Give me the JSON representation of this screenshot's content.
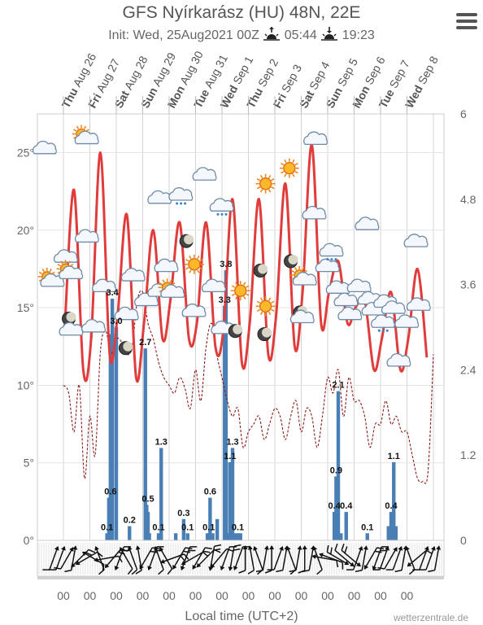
{
  "header": {
    "title": "GFS Nyírkarász (HU) 48N, 22E",
    "init_text": "Init: Wed, 25Aug2021 00Z",
    "sunrise": "05:44",
    "sunset": "19:23"
  },
  "footer": {
    "local_time_label": "Local time (UTC+2)",
    "brand": "wetterzentrale.de"
  },
  "chart_data": {
    "type": "line",
    "days": [
      {
        "dow": "Thu",
        "date": "Aug 26"
      },
      {
        "dow": "Fri",
        "date": "Aug 27"
      },
      {
        "dow": "Sat",
        "date": "Aug 28"
      },
      {
        "dow": "Sun",
        "date": "Aug 29"
      },
      {
        "dow": "Mon",
        "date": "Aug 30"
      },
      {
        "dow": "Tue",
        "date": "Aug 31"
      },
      {
        "dow": "Wed",
        "date": "Sep 1"
      },
      {
        "dow": "Thu",
        "date": "Sep 2"
      },
      {
        "dow": "Fri",
        "date": "Sep 3"
      },
      {
        "dow": "Sat",
        "date": "Sep 4"
      },
      {
        "dow": "Sun",
        "date": "Sep 5"
      },
      {
        "dow": "Mon",
        "date": "Sep 6"
      },
      {
        "dow": "Tue",
        "date": "Sep 7"
      },
      {
        "dow": "Wed",
        "date": "Sep 8"
      }
    ],
    "bottom_tick_label": "00",
    "y_left_ticks": [
      "0°",
      "5°",
      "10°",
      "15°",
      "20°",
      "25°"
    ],
    "y_left_range": [
      0,
      27.5
    ],
    "y_right_ticks": [
      "0",
      "1.2",
      "2.4",
      "3.6",
      "4.8",
      "6"
    ],
    "y_right_range": [
      0,
      6
    ],
    "series": [
      {
        "type": "line",
        "color": "#e03c3c",
        "x_days": [
          0.05,
          0.4,
          0.75,
          1.05,
          1.4,
          1.75,
          2.05,
          2.4,
          2.75,
          3.05,
          3.4,
          3.75,
          4.05,
          4.4,
          4.75,
          5.05,
          5.4,
          5.75,
          6.05,
          6.4,
          6.75,
          7.05,
          7.4,
          7.75,
          8.05,
          8.4,
          8.75,
          9.05,
          9.4,
          9.75,
          10.05,
          10.4,
          10.75,
          11.05,
          11.4,
          11.75,
          12.05,
          12.4,
          12.75,
          13.05,
          13.4,
          13.75
        ],
        "values": [
          13.7,
          22.6,
          11,
          13,
          25,
          12,
          14.5,
          21,
          10.5,
          14,
          20,
          13,
          15.5,
          20.5,
          13,
          14,
          20.5,
          12.5,
          13.5,
          22,
          11.5,
          14,
          22,
          12,
          14.5,
          23,
          12.5,
          16,
          25.5,
          14,
          16,
          18,
          14,
          15,
          15.5,
          11,
          13,
          16,
          11,
          13,
          17.5,
          11.8
        ]
      },
      {
        "type": "line",
        "style": "dashed",
        "color": "#8b1a1a",
        "x_days": [
          0,
          0.2,
          0.4,
          0.6,
          0.8,
          1.0,
          1.2,
          1.4,
          1.6,
          1.8,
          2.0,
          2.2,
          2.4,
          2.6,
          2.8,
          3.0,
          3.2,
          3.4,
          3.6,
          3.8,
          4.0,
          4.2,
          4.4,
          4.6,
          4.8,
          5.0,
          5.2,
          5.4,
          5.6,
          5.8,
          6.0,
          6.2,
          6.4,
          6.6,
          6.8,
          7.0,
          7.2,
          7.4,
          7.6,
          7.8,
          8.0,
          8.2,
          8.4,
          8.6,
          8.8,
          9.0,
          9.2,
          9.4,
          9.6,
          9.8,
          10.0,
          10.2,
          10.4,
          10.6,
          10.8,
          11.0,
          11.2,
          11.4,
          11.6,
          11.8,
          12.0,
          12.2,
          12.4,
          12.6,
          12.8,
          13.0,
          13.2,
          13.4,
          13.6,
          13.8,
          14.0
        ],
        "values": [
          10,
          9.5,
          7,
          10,
          4,
          8,
          5.5,
          12.2,
          13.5,
          12,
          13,
          12.8,
          12,
          12.5,
          15.5,
          16,
          14,
          13,
          11.5,
          10.5,
          10,
          9.5,
          10.5,
          9.8,
          8.5,
          11,
          9,
          12.5,
          14,
          12,
          10.5,
          9,
          8,
          8.5,
          6,
          7,
          7.5,
          8,
          6.5,
          7.5,
          8.5,
          8,
          6.5,
          8,
          9,
          7,
          8.5,
          8,
          6,
          8,
          10.5,
          9.5,
          11,
          8,
          10.5,
          9,
          9,
          8,
          6,
          7.5,
          7.5,
          9,
          7.5,
          8,
          7,
          7,
          5.5,
          4,
          3.8,
          4.5,
          12
        ]
      },
      {
        "type": "bar",
        "color": "#4a7fb5",
        "x_days": [
          1.65,
          1.72,
          1.78,
          1.85,
          2.0,
          2.5,
          3.1,
          3.15,
          3.2,
          3.25,
          3.6,
          3.7,
          4.25,
          4.55,
          4.7,
          5.45,
          5.55,
          5.65,
          5.82,
          6.1,
          6.15,
          6.2,
          6.3,
          6.4,
          6.5,
          6.6,
          6.7,
          10.25,
          10.32,
          10.4,
          10.5,
          10.7,
          11.5,
          12.3,
          12.4,
          12.5,
          12.58
        ],
        "values": [
          0.1,
          0.6,
          2.9,
          3.4,
          3.0,
          0.2,
          2.7,
          0.5,
          0.4,
          0.1,
          0.1,
          1.3,
          0.1,
          0.3,
          0.1,
          0.1,
          0.6,
          0.1,
          0.3,
          3.3,
          3.8,
          0.1,
          1.1,
          1.3,
          0.1,
          0.1,
          0.1,
          0.4,
          0.9,
          2.1,
          0.1,
          0.4,
          0.1,
          0.2,
          0.4,
          1.1,
          0.2
        ]
      }
    ],
    "bar_labels": [
      {
        "x_day": 1.65,
        "value": 0.1,
        "text": "0.1"
      },
      {
        "x_day": 1.78,
        "value": 0.6,
        "text": "0.6"
      },
      {
        "x_day": 1.85,
        "value": 3.4,
        "text": "3.4"
      },
      {
        "x_day": 2.0,
        "value": 3.0,
        "text": "3.0"
      },
      {
        "x_day": 2.5,
        "value": 0.2,
        "text": "0.2"
      },
      {
        "x_day": 3.1,
        "value": 2.7,
        "text": "2.7"
      },
      {
        "x_day": 3.2,
        "value": 0.5,
        "text": "0.5"
      },
      {
        "x_day": 3.6,
        "value": 0.1,
        "text": "0.1"
      },
      {
        "x_day": 3.7,
        "value": 1.3,
        "text": "1.3"
      },
      {
        "x_day": 4.55,
        "value": 0.3,
        "text": "0.3"
      },
      {
        "x_day": 4.7,
        "value": 0.1,
        "text": "0.1"
      },
      {
        "x_day": 5.5,
        "value": 0.1,
        "text": "0.1"
      },
      {
        "x_day": 5.55,
        "value": 0.6,
        "text": "0.6"
      },
      {
        "x_day": 6.1,
        "value": 3.3,
        "text": "3.3"
      },
      {
        "x_day": 6.15,
        "value": 3.8,
        "text": "3.8"
      },
      {
        "x_day": 6.3,
        "value": 1.1,
        "text": "1.1"
      },
      {
        "x_day": 6.4,
        "value": 1.3,
        "text": "1.3"
      },
      {
        "x_day": 6.6,
        "value": 0.1,
        "text": "0.1"
      },
      {
        "x_day": 10.25,
        "value": 0.4,
        "text": "0.4"
      },
      {
        "x_day": 10.32,
        "value": 0.9,
        "text": "0.9"
      },
      {
        "x_day": 10.4,
        "value": 2.1,
        "text": "2.1"
      },
      {
        "x_day": 10.7,
        "value": 0.4,
        "text": "0.4"
      },
      {
        "x_day": 11.5,
        "value": 0.1,
        "text": "0.1"
      },
      {
        "x_day": 12.4,
        "value": 0.4,
        "text": "0.4"
      },
      {
        "x_day": 12.5,
        "value": 1.1,
        "text": "1.1"
      }
    ],
    "weather_icons": [
      {
        "x_day": -0.7,
        "temp": 25.2,
        "icon": "cloud"
      },
      {
        "x_day": 0.8,
        "temp": 26.0,
        "icon": "sun-cloud"
      },
      {
        "x_day": -0.5,
        "temp": 16.8,
        "icon": "sun-cloud"
      },
      {
        "x_day": 0.1,
        "temp": 18.2,
        "icon": "cloud"
      },
      {
        "x_day": 0.9,
        "temp": 19.5,
        "icon": "cloud"
      },
      {
        "x_day": 0.2,
        "temp": 17.3,
        "icon": "sun-cloud"
      },
      {
        "x_day": 0.2,
        "temp": 14.3,
        "icon": "moon"
      },
      {
        "x_day": 0.3,
        "temp": 13.5,
        "icon": "cloud"
      },
      {
        "x_day": 1.15,
        "temp": 13.7,
        "icon": "cloud"
      },
      {
        "x_day": 1.55,
        "temp": 16.3,
        "icon": "cloud"
      },
      {
        "x_day": 2.35,
        "temp": 12.4,
        "icon": "moon"
      },
      {
        "x_day": 2.4,
        "temp": 14.5,
        "icon": "cloud"
      },
      {
        "x_day": 2.65,
        "temp": 17.0,
        "icon": "cloud"
      },
      {
        "x_day": 3.15,
        "temp": 15.4,
        "icon": "cloud"
      },
      {
        "x_day": 3.65,
        "temp": 16.0,
        "icon": "cloud"
      },
      {
        "x_day": 3.65,
        "temp": 22.0,
        "icon": "cloud"
      },
      {
        "x_day": 3.9,
        "temp": 17.6,
        "icon": "cloud"
      },
      {
        "x_day": 4.05,
        "temp": 16.1,
        "icon": "sun-cloud"
      },
      {
        "x_day": 4.45,
        "temp": 22.2,
        "icon": "cloud-rain"
      },
      {
        "x_day": 4.65,
        "temp": 19.3,
        "icon": "moon"
      },
      {
        "x_day": 4.95,
        "temp": 17.8,
        "icon": "sun"
      },
      {
        "x_day": 4.95,
        "temp": 14.7,
        "icon": "cloud"
      },
      {
        "x_day": 5.35,
        "temp": 23.5,
        "icon": "cloud"
      },
      {
        "x_day": 5.7,
        "temp": 16.3,
        "icon": "cloud"
      },
      {
        "x_day": 6.0,
        "temp": 21.5,
        "icon": "cloud-rain"
      },
      {
        "x_day": 6.05,
        "temp": 13.6,
        "icon": "cloud"
      },
      {
        "x_day": 6.5,
        "temp": 13.5,
        "icon": "moon"
      },
      {
        "x_day": 6.7,
        "temp": 16.1,
        "icon": "sun"
      },
      {
        "x_day": 7.45,
        "temp": 17.4,
        "icon": "moon"
      },
      {
        "x_day": 7.65,
        "temp": 23.0,
        "icon": "sun"
      },
      {
        "x_day": 7.65,
        "temp": 15.1,
        "icon": "sun"
      },
      {
        "x_day": 7.6,
        "temp": 13.3,
        "icon": "moon"
      },
      {
        "x_day": 8.55,
        "temp": 24.0,
        "icon": "sun"
      },
      {
        "x_day": 8.6,
        "temp": 18.0,
        "icon": "moon"
      },
      {
        "x_day": 9.05,
        "temp": 16.9,
        "icon": "sun-cloud"
      },
      {
        "x_day": 8.95,
        "temp": 14.7,
        "icon": "moon"
      },
      {
        "x_day": 9.05,
        "temp": 14.3,
        "icon": "cloud"
      },
      {
        "x_day": 9.55,
        "temp": 25.8,
        "icon": "cloud"
      },
      {
        "x_day": 9.5,
        "temp": 21.0,
        "icon": "cloud"
      },
      {
        "x_day": 10.0,
        "temp": 17.6,
        "icon": "cloud"
      },
      {
        "x_day": 10.15,
        "temp": 18.6,
        "icon": "cloud-rain"
      },
      {
        "x_day": 10.4,
        "temp": 16.2,
        "icon": "cloud"
      },
      {
        "x_day": 10.7,
        "temp": 15.4,
        "icon": "cloud"
      },
      {
        "x_day": 10.85,
        "temp": 14.5,
        "icon": "cloud"
      },
      {
        "x_day": 11.2,
        "temp": 16.3,
        "icon": "cloud"
      },
      {
        "x_day": 11.5,
        "temp": 20.3,
        "icon": "cloud"
      },
      {
        "x_day": 11.6,
        "temp": 15.5,
        "icon": "cloud"
      },
      {
        "x_day": 11.75,
        "temp": 14.8,
        "icon": "cloud"
      },
      {
        "x_day": 12.1,
        "temp": 14.0,
        "icon": "cloud-rain"
      },
      {
        "x_day": 12.2,
        "temp": 15.3,
        "icon": "cloud"
      },
      {
        "x_day": 12.5,
        "temp": 14.9,
        "icon": "cloud"
      },
      {
        "x_day": 12.7,
        "temp": 11.5,
        "icon": "cloud"
      },
      {
        "x_day": 13.0,
        "temp": 14.0,
        "icon": "cloud"
      },
      {
        "x_day": 13.35,
        "temp": 19.2,
        "icon": "cloud"
      },
      {
        "x_day": 13.45,
        "temp": 15.1,
        "icon": "cloud"
      }
    ],
    "wind_barbs": {
      "start_day": 0,
      "step_days": 0.25,
      "directions_deg": [
        200,
        200,
        210,
        190,
        45,
        60,
        120,
        160,
        80,
        40,
        20,
        150,
        160,
        170,
        30,
        20,
        160,
        150,
        70,
        30,
        20,
        60,
        30,
        45,
        10,
        40,
        20,
        10,
        20,
        180,
        170,
        160,
        190,
        180,
        200,
        190,
        160,
        190,
        180,
        190,
        160,
        100,
        110,
        300,
        310,
        310,
        200,
        190,
        30,
        20,
        200,
        210,
        200,
        190,
        160,
        50,
        200,
        200,
        190
      ],
      "speeds": [
        1,
        1,
        1,
        1,
        2,
        1,
        1,
        1,
        1,
        2,
        2,
        1,
        1,
        1,
        2,
        2,
        1,
        1,
        2,
        2,
        2,
        1,
        2,
        1,
        2,
        1,
        1,
        2,
        1,
        1,
        1,
        1,
        1,
        1,
        1,
        1,
        1,
        1,
        1,
        1,
        1,
        1,
        1,
        2,
        1,
        2,
        1,
        1,
        2,
        2,
        1,
        1,
        1,
        1,
        1,
        1,
        1,
        1,
        1
      ]
    },
    "grid": true
  }
}
